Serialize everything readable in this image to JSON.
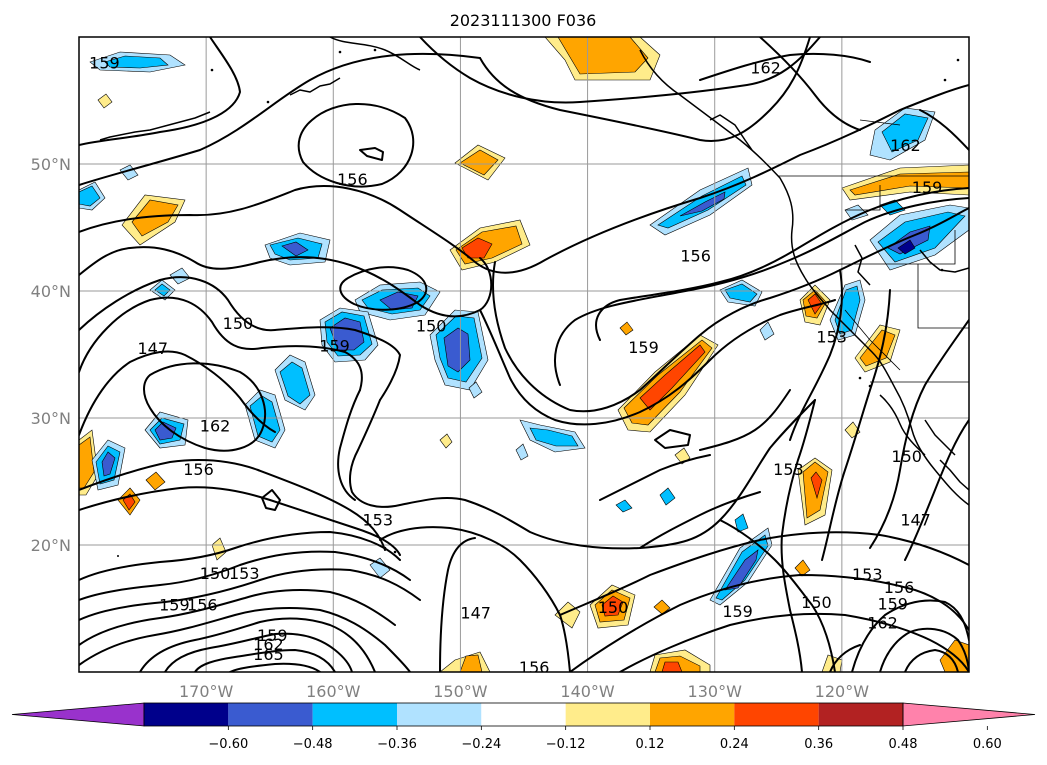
{
  "title": "2023111300 F036",
  "map": {
    "lat_range": [
      10,
      60
    ],
    "lon_range": [
      -180,
      -110
    ],
    "lat_ticks": [
      {
        "lat": 50,
        "label": "50°N"
      },
      {
        "lat": 40,
        "label": "40°N"
      },
      {
        "lat": 30,
        "label": "30°N"
      },
      {
        "lat": 20,
        "label": "20°N"
      }
    ],
    "lon_ticks": [
      {
        "lon": -170,
        "label": "170°W"
      },
      {
        "lon": -160,
        "label": "160°W"
      },
      {
        "lon": -150,
        "label": "150°W"
      },
      {
        "lon": -140,
        "label": "140°W"
      },
      {
        "lon": -130,
        "label": "130°W"
      },
      {
        "lon": -120,
        "label": "120°W"
      }
    ],
    "gridlines": true,
    "contour_labels": [
      {
        "text": "159",
        "lon": -178,
        "lat": 58
      },
      {
        "text": "162",
        "lon": -126,
        "lat": 57.6
      },
      {
        "text": "162",
        "lon": -115,
        "lat": 51.5
      },
      {
        "text": "159",
        "lon": -113.3,
        "lat": 48.2
      },
      {
        "text": "156",
        "lon": -158.5,
        "lat": 48.8
      },
      {
        "text": "156",
        "lon": -131.5,
        "lat": 42.8
      },
      {
        "text": "150",
        "lon": -167.5,
        "lat": 37.5
      },
      {
        "text": "150",
        "lon": -152.3,
        "lat": 37.3
      },
      {
        "text": "147",
        "lon": -174.2,
        "lat": 35.5
      },
      {
        "text": "159",
        "lon": -159.9,
        "lat": 35.7
      },
      {
        "text": "159",
        "lon": -135.6,
        "lat": 35.6
      },
      {
        "text": "153",
        "lon": -120.8,
        "lat": 36.4
      },
      {
        "text": "162",
        "lon": -169.3,
        "lat": 29.4
      },
      {
        "text": "156",
        "lon": -170.6,
        "lat": 26.0
      },
      {
        "text": "150",
        "lon": -114.9,
        "lat": 27.0
      },
      {
        "text": "153",
        "lon": -124.2,
        "lat": 26.0
      },
      {
        "text": "147",
        "lon": -114.2,
        "lat": 22.0
      },
      {
        "text": "153",
        "lon": -156.5,
        "lat": 22.0
      },
      {
        "text": "150",
        "lon": -169.3,
        "lat": 17.8
      },
      {
        "text": "153",
        "lon": -167.0,
        "lat": 17.8
      },
      {
        "text": "159",
        "lon": -172.5,
        "lat": 15.3
      },
      {
        "text": "156",
        "lon": -170.3,
        "lat": 15.3
      },
      {
        "text": "159",
        "lon": -164.8,
        "lat": 12.9
      },
      {
        "text": "162",
        "lon": -165.1,
        "lat": 12.2
      },
      {
        "text": "165",
        "lon": -165.1,
        "lat": 11.4
      },
      {
        "text": "147",
        "lon": -148.8,
        "lat": 14.7
      },
      {
        "text": "150",
        "lon": -138.0,
        "lat": 15.1
      },
      {
        "text": "159",
        "lon": -128.2,
        "lat": 14.8
      },
      {
        "text": "150",
        "lon": -122.0,
        "lat": 15.5
      },
      {
        "text": "153",
        "lon": -118.0,
        "lat": 17.7
      },
      {
        "text": "156",
        "lon": -115.5,
        "lat": 16.7
      },
      {
        "text": "159",
        "lon": -116.0,
        "lat": 15.4
      },
      {
        "text": "162",
        "lon": -116.8,
        "lat": 13.9
      },
      {
        "text": "156",
        "lon": -144.2,
        "lat": 10.4
      }
    ]
  },
  "colorbar": {
    "bins": [
      {
        "color": "#9932cc"
      },
      {
        "color": "#00008b",
        "label": "−0.60"
      },
      {
        "color": "#3a5bd0",
        "label": "−0.48"
      },
      {
        "color": "#00bfff",
        "label": "−0.36"
      },
      {
        "color": "#b0e2ff",
        "label": "−0.24"
      },
      {
        "color": "#ffffff",
        "label": "−0.12"
      },
      {
        "color": "#ffec8b",
        "label": "0.12"
      },
      {
        "color": "#ffa500",
        "label": "0.24"
      },
      {
        "color": "#ff4500",
        "label": "0.36"
      },
      {
        "color": "#b22222",
        "label": "0.48"
      },
      {
        "color": "#ff82ab",
        "label": "0.60"
      }
    ]
  }
}
